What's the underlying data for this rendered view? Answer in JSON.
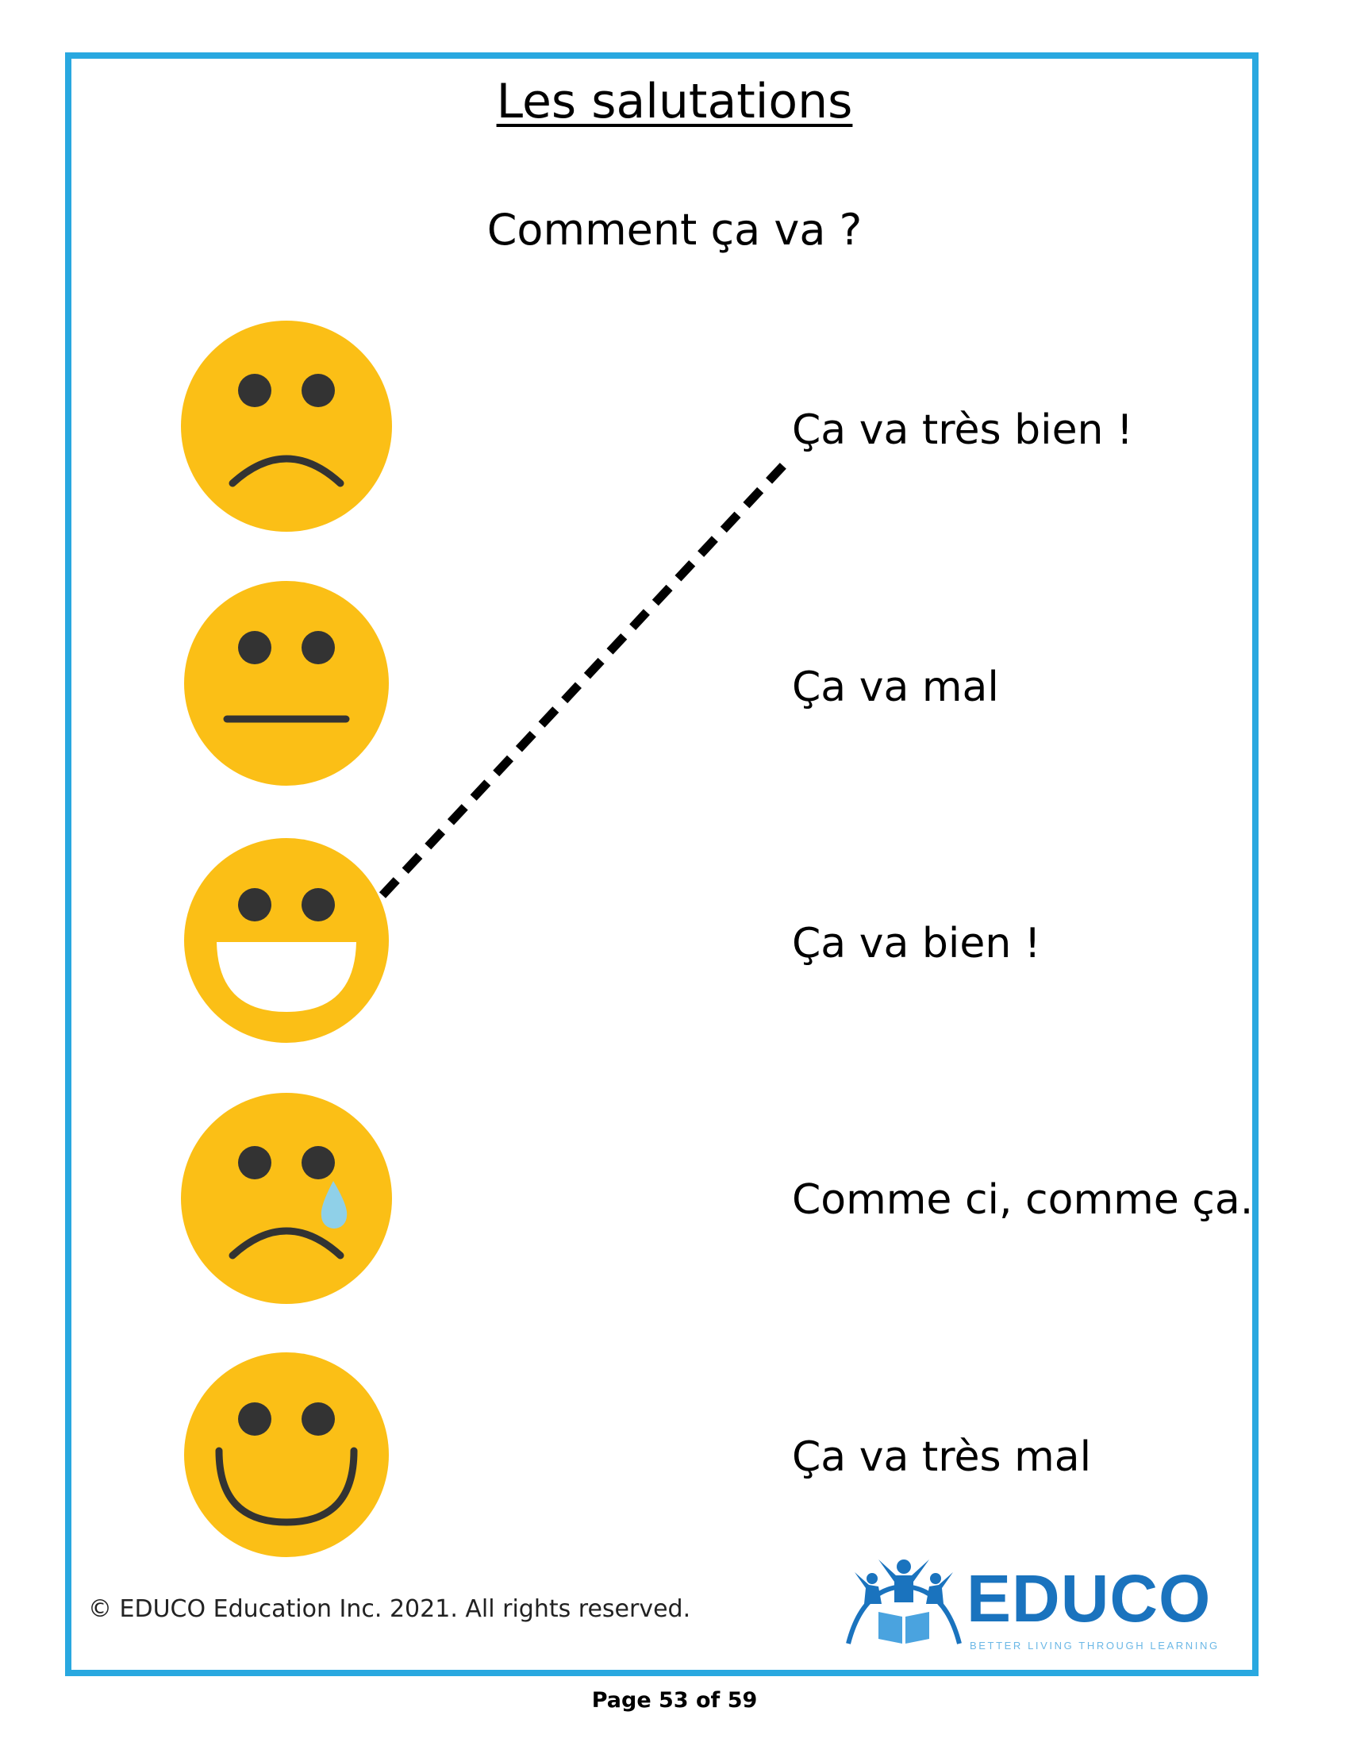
{
  "title": "Les salutations",
  "subtitle": "Comment ça va ?",
  "faces": [
    {
      "icon": "sad-face-icon"
    },
    {
      "icon": "neutral-face-icon"
    },
    {
      "icon": "laughing-face-icon"
    },
    {
      "icon": "crying-face-icon"
    },
    {
      "icon": "smiling-face-icon"
    }
  ],
  "answers": [
    "Ça va très bien !",
    "Ça va mal",
    "Ça va bien !",
    "Comme ci, comme ça.",
    "Ça va très mal"
  ],
  "example_match": {
    "face": 3,
    "answer": 1
  },
  "footer": {
    "copyright": "© EDUCO Education Inc. 2021. All rights reserved.",
    "page": "Page 53 of 59"
  },
  "logo": {
    "name": "EDUCO",
    "tagline": "BETTER LIVING THROUGH LEARNING"
  },
  "colors": {
    "border": "#29a8e0",
    "face": "#fbbf16",
    "features": "#333333",
    "tear": "#8fd0e8",
    "brand": "#1a73be"
  }
}
